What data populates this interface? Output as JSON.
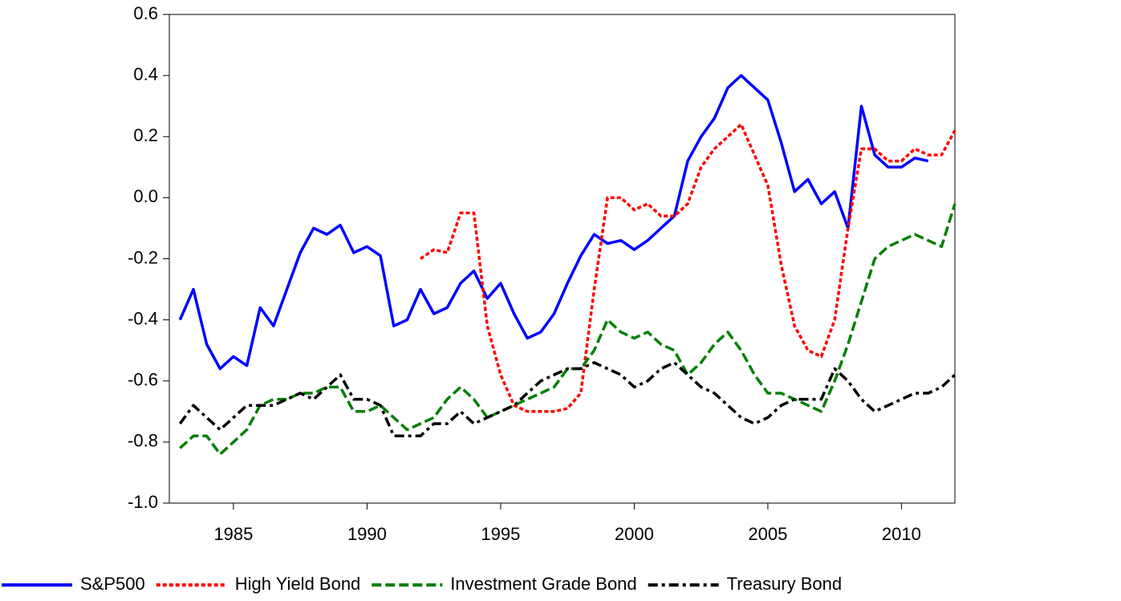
{
  "chart_data": {
    "type": "line",
    "x": [
      1983,
      1983.5,
      1984,
      1984.5,
      1985,
      1985.5,
      1986,
      1986.5,
      1987,
      1987.5,
      1988,
      1988.5,
      1989,
      1989.5,
      1990,
      1990.5,
      1991,
      1991.5,
      1992,
      1992.5,
      1993,
      1993.5,
      1994,
      1994.5,
      1995,
      1995.5,
      1996,
      1996.5,
      1997,
      1997.5,
      1998,
      1998.5,
      1999,
      1999.5,
      2000,
      2000.5,
      2001,
      2001.5,
      2002,
      2002.5,
      2003,
      2003.5,
      2004,
      2004.5,
      2005,
      2005.5,
      2006,
      2006.5,
      2007,
      2007.5,
      2008,
      2008.5,
      2009,
      2009.5,
      2010,
      2010.5,
      2011,
      2011.5,
      2012
    ],
    "series": [
      {
        "name": "S&P500",
        "color": "#0000ff",
        "dash": "none",
        "values": [
          -0.4,
          -0.3,
          -0.48,
          -0.56,
          -0.52,
          -0.55,
          -0.36,
          -0.42,
          -0.3,
          -0.18,
          -0.1,
          -0.12,
          -0.09,
          -0.18,
          -0.16,
          -0.19,
          -0.42,
          -0.4,
          -0.3,
          -0.38,
          -0.36,
          -0.28,
          -0.24,
          -0.33,
          -0.28,
          -0.38,
          -0.46,
          -0.44,
          -0.38,
          -0.28,
          -0.19,
          -0.12,
          -0.15,
          -0.14,
          -0.17,
          -0.14,
          -0.1,
          -0.06,
          0.12,
          0.2,
          0.26,
          0.36,
          0.4,
          0.36,
          0.32,
          0.18,
          0.02,
          0.06,
          -0.02,
          0.02,
          -0.1,
          0.3,
          0.14,
          0.1,
          0.1,
          0.13,
          0.12,
          null,
          null
        ]
      },
      {
        "name": "High Yield Bond",
        "color": "#ff0000",
        "dash": "5,3",
        "values": [
          null,
          null,
          null,
          null,
          null,
          null,
          null,
          null,
          null,
          null,
          null,
          null,
          null,
          null,
          null,
          null,
          null,
          null,
          -0.2,
          -0.17,
          -0.18,
          -0.05,
          -0.05,
          -0.42,
          -0.58,
          -0.68,
          -0.7,
          -0.7,
          -0.7,
          -0.69,
          -0.64,
          -0.3,
          0.0,
          0.0,
          -0.04,
          -0.02,
          -0.06,
          -0.06,
          -0.02,
          0.1,
          0.16,
          0.2,
          0.24,
          0.14,
          0.04,
          -0.22,
          -0.42,
          -0.5,
          -0.52,
          -0.4,
          -0.1,
          0.16,
          0.16,
          0.12,
          0.12,
          0.16,
          0.14,
          0.14,
          0.22
        ]
      },
      {
        "name": "Investment Grade Bond",
        "color": "#008000",
        "dash": "12,5",
        "values": [
          -0.82,
          -0.78,
          -0.78,
          -0.84,
          -0.8,
          -0.76,
          -0.68,
          -0.66,
          -0.66,
          -0.64,
          -0.64,
          -0.62,
          -0.62,
          -0.7,
          -0.7,
          -0.68,
          -0.72,
          -0.76,
          -0.74,
          -0.72,
          -0.66,
          -0.62,
          -0.66,
          -0.72,
          -0.7,
          -0.68,
          -0.66,
          -0.64,
          -0.62,
          -0.56,
          -0.56,
          -0.5,
          -0.4,
          -0.44,
          -0.46,
          -0.44,
          -0.48,
          -0.5,
          -0.58,
          -0.54,
          -0.48,
          -0.44,
          -0.5,
          -0.58,
          -0.64,
          -0.64,
          -0.66,
          -0.68,
          -0.7,
          -0.6,
          -0.48,
          -0.34,
          -0.2,
          -0.16,
          -0.14,
          -0.12,
          -0.14,
          -0.16,
          -0.02
        ]
      },
      {
        "name": "Treasury Bond",
        "color": "#000000",
        "dash": "12,5,4,5",
        "values": [
          -0.74,
          -0.68,
          -0.72,
          -0.76,
          -0.72,
          -0.68,
          -0.68,
          -0.68,
          -0.66,
          -0.64,
          -0.66,
          -0.62,
          -0.58,
          -0.66,
          -0.66,
          -0.68,
          -0.78,
          -0.78,
          -0.78,
          -0.74,
          -0.74,
          -0.7,
          -0.74,
          -0.72,
          -0.7,
          -0.68,
          -0.64,
          -0.6,
          -0.58,
          -0.56,
          -0.56,
          -0.54,
          -0.56,
          -0.58,
          -0.62,
          -0.6,
          -0.56,
          -0.54,
          -0.58,
          -0.62,
          -0.64,
          -0.68,
          -0.72,
          -0.74,
          -0.72,
          -0.68,
          -0.66,
          -0.66,
          -0.66,
          -0.56,
          -0.6,
          -0.66,
          -0.7,
          -0.68,
          -0.66,
          -0.64,
          -0.64,
          -0.62,
          -0.58
        ]
      }
    ],
    "xlim": [
      1982.6,
      2012
    ],
    "xticks": [
      1985,
      1990,
      1995,
      2000,
      2005,
      2010
    ],
    "ylim": [
      -1.0,
      0.6
    ],
    "yticks": [
      {
        "value": -1.0,
        "label": "-1.0"
      },
      -0.8,
      -0.6,
      -0.4,
      -0.2,
      {
        "value": 0,
        "label": "0.0"
      },
      0.2,
      0.4,
      0.6
    ],
    "legend": "bottom"
  }
}
